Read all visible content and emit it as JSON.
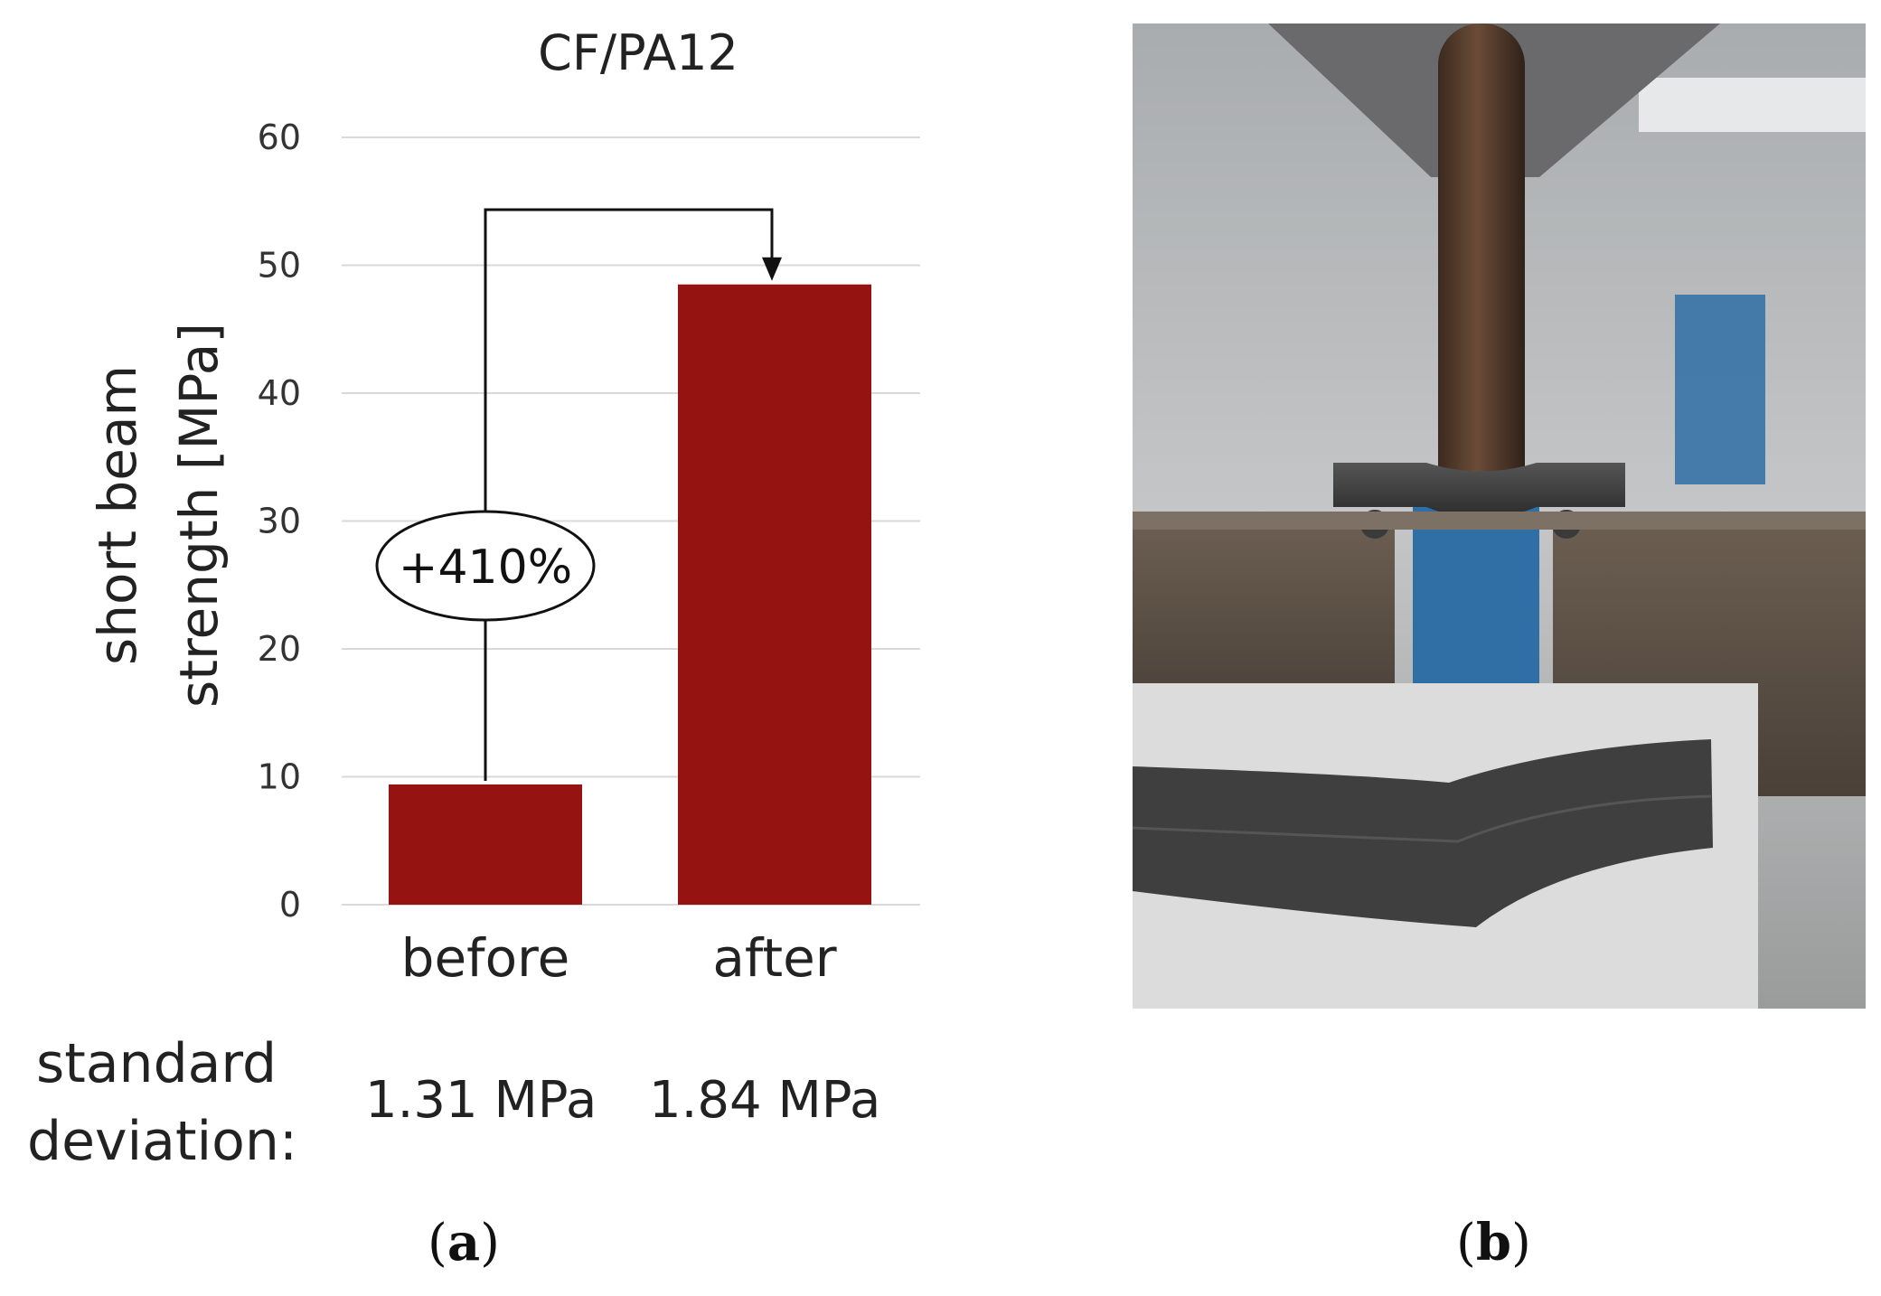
{
  "chart_data": {
    "type": "bar",
    "title": "CF/PA12",
    "ylabel_line1": "short beam",
    "ylabel_line2": "strength [MPa]",
    "xlabel": "",
    "categories": [
      "before",
      "after"
    ],
    "values": [
      9.4,
      48.5
    ],
    "ylim": [
      0,
      60
    ],
    "yticks": [
      0,
      10,
      20,
      30,
      40,
      50,
      60
    ],
    "grid": true,
    "bar_color": "#951310",
    "annotation": "+410%",
    "std_dev_label_line1": "standard",
    "std_dev_label_line2": "deviation:",
    "std_dev_values": [
      "1.31 MPa",
      "1.84 MPa"
    ]
  },
  "panels": {
    "a_label": "a",
    "b_label": "b"
  },
  "photo": {
    "colors": {
      "background": "#b9bcbe",
      "metal": "#5a4e43",
      "rod": "#5a3e2e",
      "specimen": "#3e3e3e",
      "blue_machine": "#2f6fa6",
      "inset_bg": "#dcdcdc"
    }
  }
}
